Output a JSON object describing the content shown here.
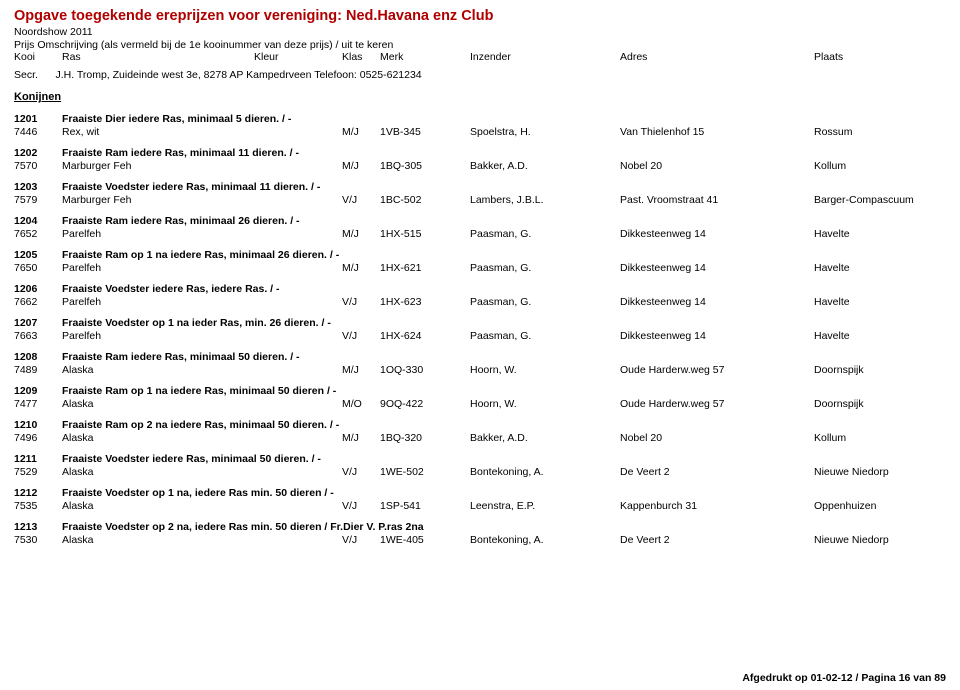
{
  "title": "Opgave toegekende ereprijzen voor vereniging: Ned.Havana enz Club",
  "subtitle": "Noordshow 2011",
  "header_line": "Prijs        Omschrijving (als vermeld bij de 1e kooinummer van deze prijs) / uit te keren",
  "columns": {
    "kooi": "Kooi",
    "ras": "Ras",
    "kleur": "Kleur",
    "klas": "Klas",
    "merk": "Merk",
    "inzender": "Inzender",
    "adres": "Adres",
    "plaats": "Plaats"
  },
  "secr_label": "Secr.",
  "secr_value": "J.H. Tromp, Zuideinde west 3e, 8278 AP Kampedrveen Telefoon: 0525-621234",
  "section_heading": "Konijnen",
  "entries": [
    {
      "no": "1201",
      "desc": "Fraaiste Dier iedere Ras, minimaal 5 dieren. / -",
      "kooi": "7446",
      "ras": "Rex, wit",
      "klas": "M/J",
      "merk": "1VB-345",
      "inzender": "Spoelstra, H.",
      "adres": "Van Thielenhof 15",
      "plaats": "Rossum"
    },
    {
      "no": "1202",
      "desc": "Fraaiste Ram iedere Ras, minimaal 11 dieren. / -",
      "kooi": "7570",
      "ras": "Marburger Feh",
      "klas": "M/J",
      "merk": "1BQ-305",
      "inzender": "Bakker, A.D.",
      "adres": "Nobel 20",
      "plaats": "Kollum"
    },
    {
      "no": "1203",
      "desc": "Fraaiste Voedster iedere Ras, minimaal 11 dieren. / -",
      "kooi": "7579",
      "ras": "Marburger Feh",
      "klas": "V/J",
      "merk": "1BC-502",
      "inzender": "Lambers, J.B.L.",
      "adres": "Past. Vroomstraat 41",
      "plaats": "Barger-Compascuum"
    },
    {
      "no": "1204",
      "desc": "Fraaiste Ram iedere Ras, minimaal 26 dieren. / -",
      "kooi": "7652",
      "ras": "Parelfeh",
      "klas": "M/J",
      "merk": "1HX-515",
      "inzender": "Paasman, G.",
      "adres": "Dikkesteenweg 14",
      "plaats": "Havelte"
    },
    {
      "no": "1205",
      "desc": "Fraaiste Ram op 1 na iedere Ras, minimaal 26 dieren. / -",
      "kooi": "7650",
      "ras": "Parelfeh",
      "klas": "M/J",
      "merk": "1HX-621",
      "inzender": "Paasman, G.",
      "adres": "Dikkesteenweg 14",
      "plaats": "Havelte"
    },
    {
      "no": "1206",
      "desc": "Fraaiste Voedster iedere Ras, iedere Ras. / -",
      "kooi": "7662",
      "ras": "Parelfeh",
      "klas": "V/J",
      "merk": "1HX-623",
      "inzender": "Paasman, G.",
      "adres": "Dikkesteenweg 14",
      "plaats": "Havelte"
    },
    {
      "no": "1207",
      "desc": "Fraaiste Voedster op 1 na ieder Ras, min. 26 dieren. / -",
      "kooi": "7663",
      "ras": "Parelfeh",
      "klas": "V/J",
      "merk": "1HX-624",
      "inzender": "Paasman, G.",
      "adres": "Dikkesteenweg 14",
      "plaats": "Havelte"
    },
    {
      "no": "1208",
      "desc": "Fraaiste Ram iedere Ras, minimaal 50 dieren. / -",
      "kooi": "7489",
      "ras": "Alaska",
      "klas": "M/J",
      "merk": "1OQ-330",
      "inzender": "Hoorn, W.",
      "adres": "Oude Harderw.weg 57",
      "plaats": "Doornspijk"
    },
    {
      "no": "1209",
      "desc": "Fraaiste Ram op 1 na iedere Ras, minimaal 50 dieren / -",
      "kooi": "7477",
      "ras": "Alaska",
      "klas": "M/O",
      "merk": "9OQ-422",
      "inzender": "Hoorn, W.",
      "adres": "Oude Harderw.weg 57",
      "plaats": "Doornspijk"
    },
    {
      "no": "1210",
      "desc": "Fraaiste Ram op 2 na iedere Ras, minimaal 50 dieren. / -",
      "kooi": "7496",
      "ras": "Alaska",
      "klas": "M/J",
      "merk": "1BQ-320",
      "inzender": "Bakker, A.D.",
      "adres": "Nobel 20",
      "plaats": "Kollum"
    },
    {
      "no": "1211",
      "desc": "Fraaiste Voedster iedere Ras, minimaal 50 dieren. / -",
      "kooi": "7529",
      "ras": "Alaska",
      "klas": "V/J",
      "merk": "1WE-502",
      "inzender": "Bontekoning, A.",
      "adres": "De Veert 2",
      "plaats": "Nieuwe Niedorp"
    },
    {
      "no": "1212",
      "desc": "Fraaiste Voedster op 1 na, iedere Ras min. 50 dieren / -",
      "kooi": "7535",
      "ras": "Alaska",
      "klas": "V/J",
      "merk": "1SP-541",
      "inzender": "Leenstra, E.P.",
      "adres": "Kappenburch 31",
      "plaats": "Oppenhuizen"
    },
    {
      "no": "1213",
      "desc": "Fraaiste Voedster op 2 na, iedere Ras min. 50 dieren / Fr.Dier V. P.ras 2na",
      "kooi": "7530",
      "ras": "Alaska",
      "klas": "V/J",
      "merk": "1WE-405",
      "inzender": "Bontekoning, A.",
      "adres": "De Veert 2",
      "plaats": "Nieuwe Niedorp"
    }
  ],
  "footer": "Afgedrukt op 01-02-12 / Pagina 16 van 89"
}
